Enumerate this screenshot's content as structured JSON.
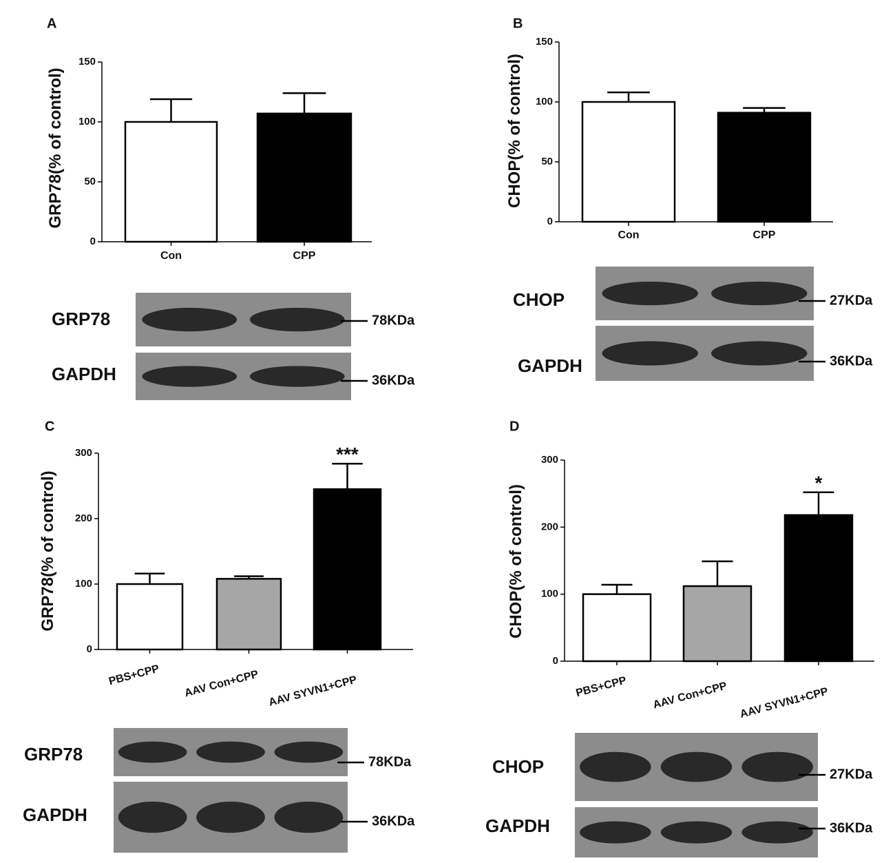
{
  "chart_data": [
    {
      "type": "bar",
      "panel_label": "A",
      "y_label": "GRP78(% of control)",
      "categories": [
        "Con",
        "CPP"
      ],
      "values": [
        100,
        107
      ],
      "errors": [
        19,
        17
      ],
      "colors": [
        "#ffffff",
        "#000000"
      ],
      "ylim": [
        0,
        150
      ],
      "yticks": [
        0,
        50,
        100,
        150
      ],
      "blots": [
        {
          "label": "GRP78",
          "size": "78KDa"
        },
        {
          "label": "GAPDH",
          "size": "36KDa"
        }
      ]
    },
    {
      "type": "bar",
      "panel_label": "B",
      "y_label": "CHOP(% of control)",
      "categories": [
        "Con",
        "CPP"
      ],
      "values": [
        100,
        91
      ],
      "errors": [
        8,
        4
      ],
      "colors": [
        "#ffffff",
        "#000000"
      ],
      "ylim": [
        0,
        150
      ],
      "yticks": [
        0,
        50,
        100,
        150
      ],
      "blots": [
        {
          "label": "CHOP",
          "size": "27KDa"
        },
        {
          "label": "GAPDH",
          "size": "36KDa"
        }
      ]
    },
    {
      "type": "bar",
      "panel_label": "C",
      "y_label": "GRP78(% of control)",
      "categories": [
        "PBS+CPP",
        "AAV Con+CPP",
        "AAV SYVN1+CPP"
      ],
      "values": [
        100,
        108,
        245
      ],
      "errors": [
        16,
        4,
        39
      ],
      "annotations": [
        null,
        null,
        "***"
      ],
      "colors": [
        "#ffffff",
        "#a6a6a6",
        "#000000"
      ],
      "ylim": [
        0,
        300
      ],
      "yticks": [
        0,
        100,
        200,
        300
      ],
      "blots": [
        {
          "label": "GRP78",
          "size": "78KDa"
        },
        {
          "label": "GAPDH",
          "size": "36KDa"
        }
      ]
    },
    {
      "type": "bar",
      "panel_label": "D",
      "y_label": "CHOP(% of control)",
      "categories": [
        "PBS+CPP",
        "AAV Con+CPP",
        "AAV SYVN1+CPP"
      ],
      "values": [
        100,
        112,
        218
      ],
      "errors": [
        14,
        37,
        34
      ],
      "annotations": [
        null,
        null,
        "*"
      ],
      "colors": [
        "#ffffff",
        "#a6a6a6",
        "#000000"
      ],
      "ylim": [
        0,
        300
      ],
      "yticks": [
        0,
        100,
        200,
        300
      ],
      "blots": [
        {
          "label": "CHOP",
          "size": "27KDa"
        },
        {
          "label": "GAPDH",
          "size": "36KDa"
        }
      ]
    }
  ]
}
